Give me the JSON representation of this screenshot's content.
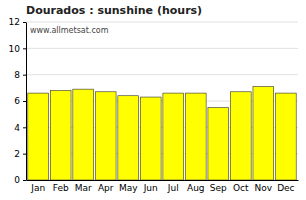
{
  "chart_data": {
    "type": "bar",
    "title": "Dourados : sunshine (hours)",
    "categories": [
      "Jan",
      "Feb",
      "Mar",
      "Apr",
      "May",
      "Jun",
      "Jul",
      "Aug",
      "Sep",
      "Oct",
      "Nov",
      "Dec"
    ],
    "values": [
      6.6,
      6.8,
      6.9,
      6.7,
      6.4,
      6.3,
      6.6,
      6.6,
      5.5,
      6.7,
      7.1,
      6.6
    ],
    "color": "#ffff00",
    "ylim": [
      0,
      12
    ],
    "yticks": [
      0,
      2,
      4,
      6,
      8,
      10,
      12
    ],
    "grid": true,
    "annotations": [
      "www.allmetsat.com"
    ]
  }
}
